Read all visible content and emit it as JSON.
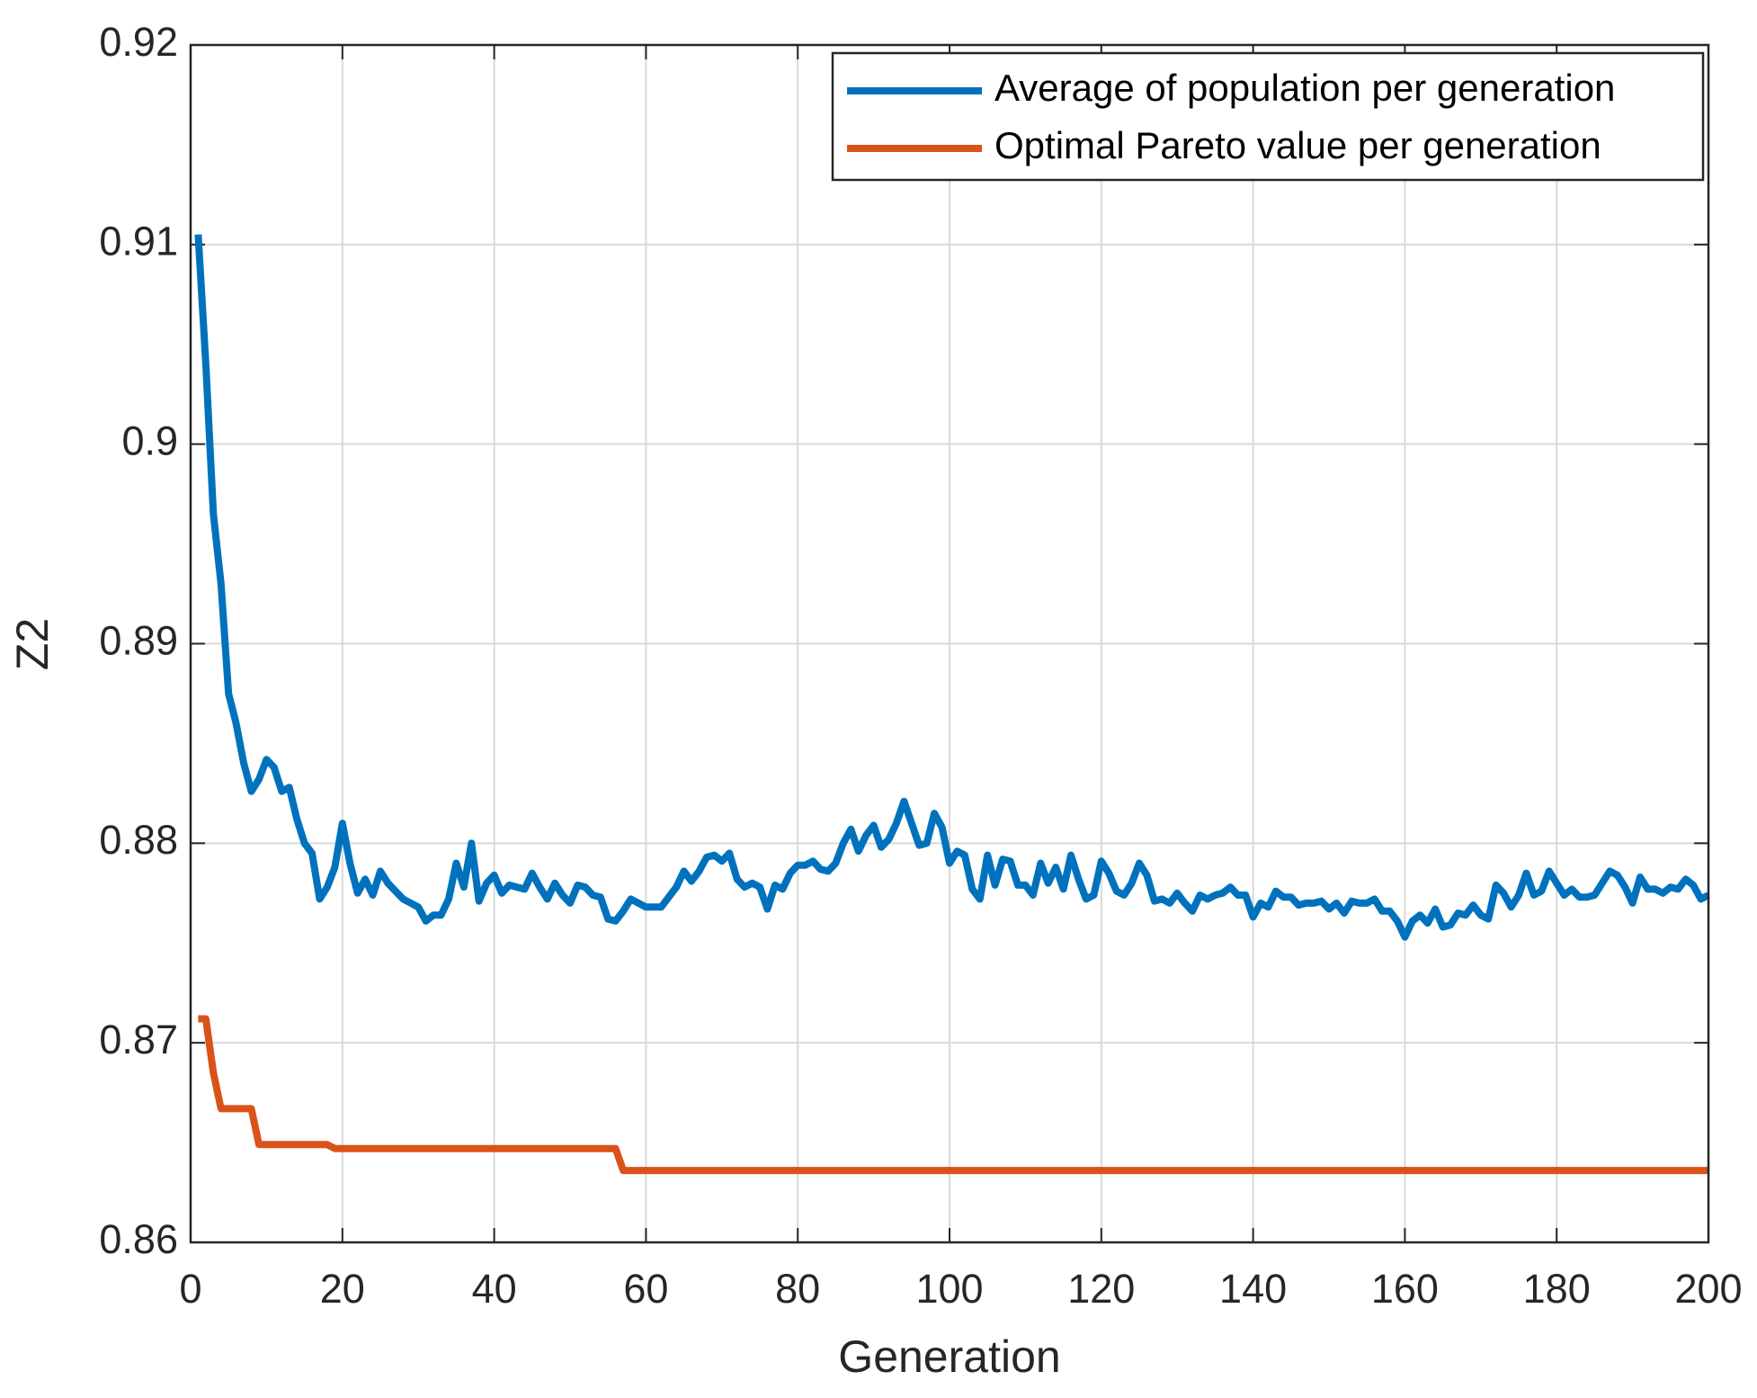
{
  "chart_data": {
    "type": "line",
    "xlabel": "Generation",
    "ylabel": "Z2",
    "xlim": [
      0,
      200
    ],
    "xticks": [
      0,
      20,
      40,
      60,
      80,
      100,
      120,
      140,
      160,
      180,
      200
    ],
    "ylim": [
      0.86,
      0.92
    ],
    "yticks": [
      0.86,
      0.87,
      0.88,
      0.89,
      0.9,
      0.91,
      0.92
    ],
    "grid": true,
    "legend": "northeast",
    "series": [
      {
        "name": "Average of population per generation",
        "color": "#0072bd",
        "x": [
          1,
          2,
          3,
          4,
          5,
          6,
          7,
          8,
          9,
          10,
          11,
          12,
          13,
          14,
          15,
          16,
          17,
          18,
          19,
          20,
          21,
          22,
          23,
          24,
          25,
          26,
          27,
          28,
          29,
          30,
          31,
          32,
          33,
          34,
          35,
          36,
          37,
          38,
          39,
          40,
          41,
          42,
          43,
          44,
          45,
          46,
          47,
          48,
          49,
          50,
          51,
          52,
          53,
          54,
          55,
          56,
          57,
          58,
          59,
          60,
          62,
          64,
          65,
          66,
          67,
          68,
          69,
          70,
          71,
          72,
          73,
          74,
          75,
          76,
          77,
          78,
          79,
          80,
          81,
          82,
          83,
          84,
          85,
          86,
          87,
          88,
          89,
          90,
          91,
          92,
          93,
          94,
          95,
          96,
          97,
          98,
          99,
          100,
          101,
          102,
          103,
          104,
          105,
          106,
          107,
          108,
          109,
          110,
          111,
          112,
          113,
          114,
          115,
          116,
          117,
          118,
          119,
          120,
          121,
          122,
          123,
          124,
          125,
          126,
          127,
          128,
          129,
          130,
          131,
          132,
          133,
          134,
          135,
          136,
          137,
          138,
          139,
          140,
          141,
          142,
          143,
          144,
          145,
          146,
          147,
          148,
          149,
          150,
          151,
          152,
          153,
          154,
          155,
          156,
          157,
          158,
          159,
          160,
          161,
          162,
          163,
          164,
          165,
          166,
          167,
          168,
          169,
          170,
          171,
          172,
          173,
          174,
          175,
          176,
          177,
          178,
          179,
          180,
          181,
          182,
          183,
          184,
          185,
          186,
          187,
          188,
          189,
          190,
          191,
          192,
          193,
          194,
          195,
          196,
          197,
          198,
          199,
          200
        ],
        "values": [
          0.9105,
          0.904,
          0.8965,
          0.893,
          0.8875,
          0.886,
          0.884,
          0.8826,
          0.8832,
          0.8842,
          0.8838,
          0.8826,
          0.8828,
          0.8812,
          0.88,
          0.8795,
          0.8772,
          0.8778,
          0.8788,
          0.881,
          0.879,
          0.8775,
          0.8782,
          0.8774,
          0.8786,
          0.878,
          0.8776,
          0.8772,
          0.877,
          0.8768,
          0.8761,
          0.8764,
          0.8764,
          0.8772,
          0.879,
          0.8778,
          0.88,
          0.8771,
          0.878,
          0.8784,
          0.8775,
          0.8779,
          0.8778,
          0.8777,
          0.8785,
          0.8778,
          0.8772,
          0.878,
          0.8774,
          0.877,
          0.8779,
          0.8778,
          0.8774,
          0.8773,
          0.8762,
          0.8761,
          0.8766,
          0.8772,
          0.877,
          0.8768,
          0.8768,
          0.8778,
          0.8786,
          0.8781,
          0.8786,
          0.8793,
          0.8794,
          0.8791,
          0.8795,
          0.8782,
          0.8778,
          0.878,
          0.8778,
          0.8767,
          0.8779,
          0.8777,
          0.8785,
          0.8789,
          0.8789,
          0.8791,
          0.8787,
          0.8786,
          0.879,
          0.88,
          0.8807,
          0.8796,
          0.8804,
          0.8809,
          0.8798,
          0.8802,
          0.881,
          0.8821,
          0.881,
          0.8799,
          0.88,
          0.8815,
          0.8808,
          0.879,
          0.8796,
          0.8794,
          0.8777,
          0.8772,
          0.8794,
          0.8779,
          0.8792,
          0.8791,
          0.8779,
          0.8779,
          0.8774,
          0.879,
          0.878,
          0.8788,
          0.8777,
          0.8794,
          0.8782,
          0.8772,
          0.8774,
          0.8791,
          0.8785,
          0.8776,
          0.8774,
          0.878,
          0.879,
          0.8784,
          0.8771,
          0.8772,
          0.877,
          0.8775,
          0.877,
          0.8766,
          0.8774,
          0.8772,
          0.8774,
          0.8775,
          0.8778,
          0.8774,
          0.8774,
          0.8763,
          0.877,
          0.8768,
          0.8776,
          0.8773,
          0.8773,
          0.8769,
          0.877,
          0.877,
          0.8771,
          0.8767,
          0.877,
          0.8765,
          0.8771,
          0.877,
          0.877,
          0.8772,
          0.8766,
          0.8766,
          0.8761,
          0.8753,
          0.8761,
          0.8764,
          0.876,
          0.8767,
          0.8758,
          0.8759,
          0.8765,
          0.8764,
          0.8769,
          0.8764,
          0.8762,
          0.8779,
          0.8775,
          0.8768,
          0.8774,
          0.8785,
          0.8774,
          0.8776,
          0.8786,
          0.878,
          0.8774,
          0.8777,
          0.8773,
          0.8773,
          0.8774,
          0.878,
          0.8786,
          0.8784,
          0.8778,
          0.877,
          0.8783,
          0.8777,
          0.8777,
          0.8775,
          0.8778,
          0.8777,
          0.8782,
          0.8779,
          0.8772,
          0.8774
        ]
      },
      {
        "name": "Optimal Pareto value per generation",
        "color": "#d95319",
        "x": [
          1,
          2,
          3,
          4,
          8,
          9,
          18,
          19,
          56,
          57,
          200
        ],
        "values": [
          0.8712,
          0.8712,
          0.8685,
          0.8667,
          0.8667,
          0.8649,
          0.8649,
          0.8647,
          0.8647,
          0.8636,
          0.8636
        ]
      }
    ]
  }
}
